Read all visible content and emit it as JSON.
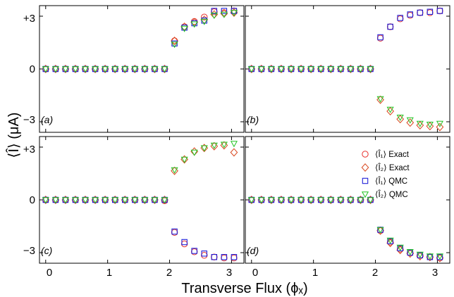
{
  "figure": {
    "xlabel": "Transverse Flux  (ϕₓ)",
    "ylabel": "⟨Î⟩ (μA)",
    "xticks": [
      "0",
      "1",
      "2",
      "3"
    ],
    "yticks": [
      "−3",
      "0",
      "+3"
    ],
    "colors": {
      "exact1": "#e8302c",
      "exact2": "#d9481f",
      "qmc1": "#2020d8",
      "qmc2": "#22c422",
      "frame": "#000000"
    }
  },
  "legend": {
    "items": [
      {
        "label": "⟨Î₁⟩ Exact",
        "marker": "circle"
      },
      {
        "label": "⟨Î₂⟩ Exact",
        "marker": "diamond"
      },
      {
        "label": "⟨Î₁⟩ QMC",
        "marker": "square"
      },
      {
        "label": "⟨Î₂⟩ QMC",
        "marker": "triangle-down"
      }
    ]
  },
  "chart_data": [
    {
      "panel": "(a)",
      "type": "scatter",
      "xlim": [
        -0.1,
        3.2
      ],
      "ylim": [
        -3.6,
        3.6
      ],
      "xticks": [
        0,
        1,
        2,
        3
      ],
      "yticks": [
        -3,
        0,
        3
      ],
      "x": [
        0,
        0.16,
        0.32,
        0.48,
        0.64,
        0.8,
        0.96,
        1.12,
        1.28,
        1.44,
        1.6,
        1.76,
        1.92,
        2.08,
        2.24,
        2.4,
        2.56,
        2.72,
        2.88,
        3.04
      ],
      "series": [
        {
          "name": "⟨Î₁⟩ Exact",
          "marker": "circle",
          "values": [
            0,
            0,
            0,
            0,
            0,
            0,
            0,
            0,
            0,
            0,
            0,
            0,
            0,
            1.6,
            2.4,
            2.7,
            2.95,
            3.25,
            3.2,
            3.3
          ]
        },
        {
          "name": "⟨Î₂⟩ Exact",
          "marker": "diamond",
          "values": [
            0,
            0,
            0,
            0,
            0,
            0,
            0,
            0,
            0,
            0,
            0,
            0,
            0,
            1.6,
            2.4,
            2.65,
            2.8,
            3.1,
            3.15,
            3.2
          ]
        },
        {
          "name": "⟨Î₁⟩ QMC",
          "marker": "square",
          "values": [
            0,
            0,
            0,
            0,
            0,
            0,
            0,
            0,
            0,
            0,
            0,
            0,
            0,
            1.45,
            2.35,
            2.6,
            2.75,
            3.3,
            3.3,
            3.3
          ]
        },
        {
          "name": "⟨Î₂⟩ QMC",
          "marker": "triangle-down",
          "values": [
            0,
            0,
            0,
            0,
            0,
            0,
            0,
            0,
            0,
            0,
            0,
            0,
            0,
            1.4,
            2.3,
            2.55,
            2.7,
            3.05,
            3.1,
            3.2
          ]
        }
      ]
    },
    {
      "panel": "(b)",
      "type": "scatter",
      "xlim": [
        -0.1,
        3.2
      ],
      "ylim": [
        -3.6,
        3.6
      ],
      "xticks": [
        0,
        1,
        2,
        3
      ],
      "yticks": [
        -3,
        0,
        3
      ],
      "x": [
        0,
        0.16,
        0.32,
        0.48,
        0.64,
        0.8,
        0.96,
        1.12,
        1.28,
        1.44,
        1.6,
        1.76,
        1.92,
        2.08,
        2.24,
        2.4,
        2.56,
        2.72,
        2.88,
        3.04
      ],
      "series": [
        {
          "name": "⟨Î₁⟩ Exact",
          "marker": "circle",
          "values": [
            0,
            0,
            0,
            0,
            0,
            0,
            0,
            0,
            0,
            0,
            0,
            0,
            0,
            1.75,
            2.4,
            2.85,
            3.05,
            3.2,
            3.2,
            3.3
          ]
        },
        {
          "name": "⟨Î₂⟩ Exact",
          "marker": "diamond",
          "values": [
            0,
            0,
            0,
            0,
            0,
            0,
            0,
            0,
            0,
            0,
            0,
            0,
            0,
            -1.75,
            -2.4,
            -2.85,
            -3.05,
            -3.2,
            -3.25,
            -3.3
          ]
        },
        {
          "name": "⟨Î₁⟩ QMC",
          "marker": "square",
          "values": [
            0,
            0,
            0,
            0,
            0,
            0,
            0,
            0,
            0,
            0,
            0,
            0,
            0,
            1.8,
            2.4,
            2.9,
            3.1,
            3.2,
            3.25,
            3.3
          ]
        },
        {
          "name": "⟨Î₂⟩ QMC",
          "marker": "triangle-down",
          "values": [
            0,
            0,
            0,
            0,
            0,
            0,
            0,
            0,
            0,
            0,
            0,
            0,
            0,
            -1.7,
            -2.3,
            -2.75,
            -2.9,
            -3.1,
            -3.15,
            -3.1
          ]
        }
      ]
    },
    {
      "panel": "(c)",
      "type": "scatter",
      "xlim": [
        -0.1,
        3.2
      ],
      "ylim": [
        -3.6,
        3.6
      ],
      "xticks": [
        0,
        1,
        2,
        3
      ],
      "yticks": [
        -3,
        0,
        3
      ],
      "x": [
        0,
        0.16,
        0.32,
        0.48,
        0.64,
        0.8,
        0.96,
        1.12,
        1.28,
        1.44,
        1.6,
        1.76,
        1.92,
        2.08,
        2.24,
        2.4,
        2.56,
        2.72,
        2.88,
        3.04
      ],
      "series": [
        {
          "name": "⟨Î₁⟩ Exact",
          "marker": "circle",
          "values": [
            0,
            0,
            0,
            0,
            0,
            0,
            0,
            0,
            0,
            0,
            0,
            0,
            -0.05,
            -1.85,
            -2.5,
            -2.95,
            -3.15,
            -3.25,
            -3.3,
            -3.3
          ]
        },
        {
          "name": "⟨Î₂⟩ Exact",
          "marker": "diamond",
          "values": [
            0,
            0,
            0,
            0,
            0,
            0,
            0,
            0,
            0,
            0,
            0,
            0,
            0,
            1.65,
            2.3,
            2.75,
            2.95,
            3.05,
            3.1,
            2.7
          ]
        },
        {
          "name": "⟨Î₁⟩ QMC",
          "marker": "square",
          "values": [
            0,
            0,
            0,
            0,
            0,
            0,
            0,
            0,
            0,
            0,
            0,
            0,
            0,
            -1.8,
            -2.4,
            -2.9,
            -3.05,
            -3.25,
            -3.25,
            -3.25
          ]
        },
        {
          "name": "⟨Î₂⟩ QMC",
          "marker": "triangle-down",
          "values": [
            0,
            0,
            0,
            0,
            0,
            0,
            0,
            0,
            0,
            0,
            0,
            0,
            0,
            1.7,
            2.3,
            2.7,
            2.95,
            3.1,
            3.15,
            3.2
          ]
        }
      ]
    },
    {
      "panel": "(d)",
      "type": "scatter",
      "xlim": [
        -0.1,
        3.2
      ],
      "ylim": [
        -3.6,
        3.6
      ],
      "xticks": [
        0,
        1,
        2,
        3
      ],
      "yticks": [
        -3,
        0,
        3
      ],
      "x": [
        0,
        0.16,
        0.32,
        0.48,
        0.64,
        0.8,
        0.96,
        1.12,
        1.28,
        1.44,
        1.6,
        1.76,
        1.92,
        2.08,
        2.24,
        2.4,
        2.56,
        2.72,
        2.88,
        3.04
      ],
      "series": [
        {
          "name": "⟨Î₁⟩ Exact",
          "marker": "circle",
          "values": [
            0,
            0,
            0,
            0,
            0,
            0,
            0,
            0,
            0,
            0,
            0,
            0,
            0,
            -1.75,
            -2.4,
            -2.8,
            -3.0,
            -3.15,
            -3.25,
            -3.3
          ]
        },
        {
          "name": "⟨Î₂⟩ Exact",
          "marker": "diamond",
          "values": [
            0,
            0,
            0,
            0,
            0,
            0,
            0,
            0,
            0,
            0,
            0,
            0,
            0,
            -1.75,
            -2.45,
            -2.85,
            -3.05,
            -3.2,
            -3.25,
            -3.3
          ]
        },
        {
          "name": "⟨Î₁⟩ QMC",
          "marker": "square",
          "values": [
            0,
            0,
            0,
            0,
            0,
            0,
            0,
            0,
            0,
            0,
            0,
            0,
            0,
            -1.7,
            -2.35,
            -2.75,
            -3.0,
            -3.15,
            -3.25,
            -3.25
          ]
        },
        {
          "name": "⟨Î₂⟩ QMC",
          "marker": "triangle-down",
          "values": [
            0,
            0,
            0,
            0,
            0,
            0,
            0,
            0,
            0,
            0,
            0,
            0,
            0,
            -1.7,
            -2.3,
            -2.7,
            -2.95,
            -3.1,
            -3.2,
            -3.2
          ]
        }
      ]
    }
  ]
}
